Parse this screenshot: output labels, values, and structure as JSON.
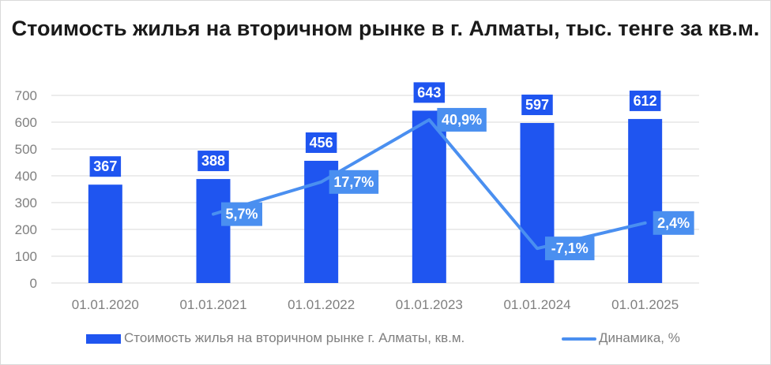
{
  "chart_data": {
    "type": "bar",
    "title": "Стоимость жилья на вторичном рынке в г. Алматы, тыс. тенге за кв.м.",
    "categories": [
      "01.01.2020",
      "01.01.2021",
      "01.01.2022",
      "01.01.2023",
      "01.01.2024",
      "01.01.2025"
    ],
    "series": [
      {
        "name": "Стоимость жилья на вторичном рынке г. Алматы, кв.м.",
        "type": "bar",
        "values": [
          367,
          388,
          456,
          643,
          597,
          612
        ],
        "labels": [
          "367",
          "388",
          "456",
          "643",
          "597",
          "612"
        ],
        "color": "#1f55f0"
      },
      {
        "name": "Динамика, %",
        "type": "line",
        "values": [
          null,
          5.7,
          17.7,
          40.9,
          -7.1,
          2.4
        ],
        "labels": [
          "",
          "5,7%",
          "17,7%",
          "40,9%",
          "-7,1%",
          "2,4%"
        ],
        "color": "#4a8ff0"
      }
    ],
    "yticks": [
      "0",
      "100",
      "200",
      "300",
      "400",
      "500",
      "600",
      "700"
    ],
    "ylim": [
      0,
      700
    ],
    "y2lim": [
      -20,
      50
    ],
    "grid": true,
    "legend_position": "bottom"
  }
}
